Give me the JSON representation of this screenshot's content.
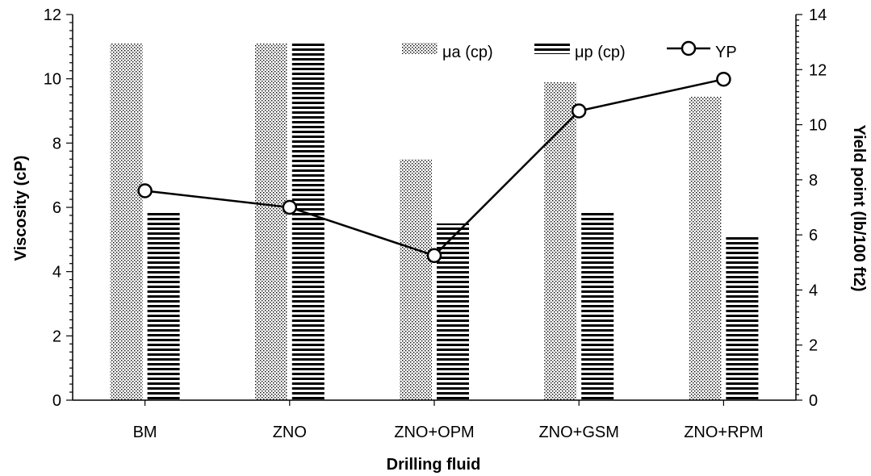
{
  "chart_data": {
    "type": "bar",
    "xlabel": "Drilling fluid",
    "ylabel": "Viscosity (cP)",
    "y2label": "Yield point (lb/100 ft2)",
    "ylim": [
      0,
      12
    ],
    "y2lim": [
      0,
      14
    ],
    "yticks": [
      "0",
      "2",
      "4",
      "6",
      "8",
      "10",
      "12"
    ],
    "y2ticks": [
      "0",
      "2",
      "4",
      "6",
      "8",
      "10",
      "12",
      "14"
    ],
    "categories": [
      "BM",
      "ZNO",
      "ZNO+OPM",
      "ZNO+GSM",
      "ZNO+RPM"
    ],
    "series": [
      {
        "name": "μa (cp)",
        "kind": "bar",
        "pattern": "dots",
        "axis": "left",
        "values": [
          11.1,
          11.1,
          7.5,
          9.9,
          9.45
        ]
      },
      {
        "name": "μp (cp)",
        "kind": "bar",
        "pattern": "hlines",
        "axis": "left",
        "values": [
          5.9,
          11.1,
          5.5,
          5.9,
          5.1
        ]
      },
      {
        "name": "YP",
        "kind": "line",
        "marker": "open-circle",
        "axis": "right",
        "values": [
          7.6,
          7.0,
          5.25,
          10.5,
          11.65
        ]
      }
    ],
    "legend_position": "top-right",
    "grid": false
  }
}
